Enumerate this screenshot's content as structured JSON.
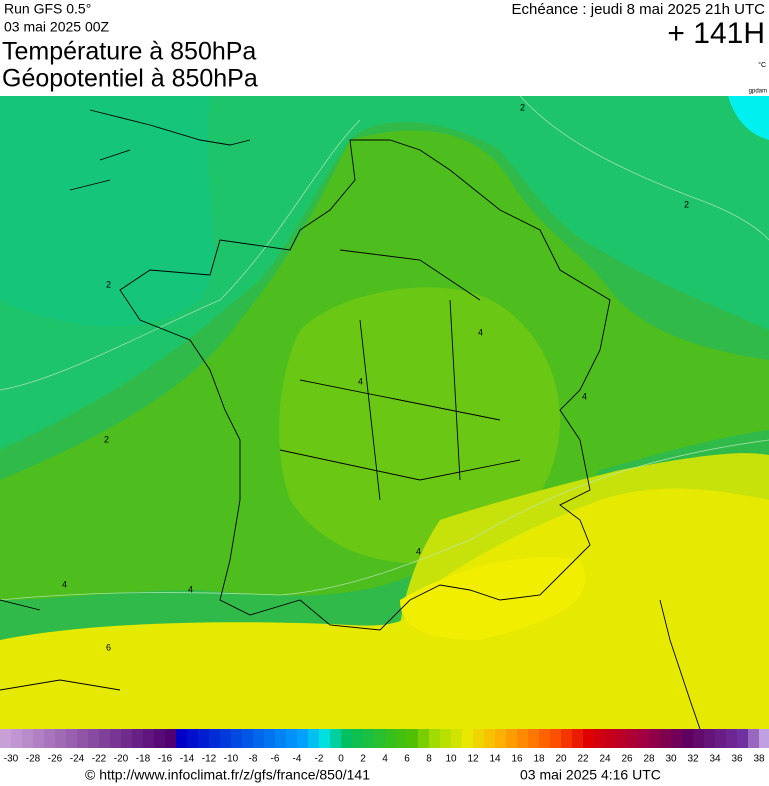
{
  "header": {
    "run": "Run GFS 0.5°",
    "date": "03 mai 2025 00Z",
    "title1": "Température à 850hPa",
    "title2": "Géopotentiel à 850hPa",
    "forecast": "Echéance : jeudi 8 mai 2025 21h UTC",
    "lead": "+ 141H",
    "unit": "°C",
    "unit2": "gpdam"
  },
  "contour_labels": [
    "2",
    "2",
    "2",
    "2",
    "4",
    "4",
    "4",
    "4",
    "4",
    "4",
    "6"
  ],
  "colorbar": {
    "labels": [
      "-30",
      "-28",
      "-26",
      "-24",
      "-22",
      "-20",
      "-18",
      "-16",
      "-14",
      "-12",
      "-10",
      "-8",
      "-6",
      "-4",
      "-2",
      "0",
      "2",
      "4",
      "6",
      "8",
      "10",
      "12",
      "14",
      "16",
      "18",
      "20",
      "22",
      "24",
      "26",
      "28",
      "30",
      "32",
      "34",
      "36",
      "38"
    ]
  },
  "footer": {
    "url": "© http://www.infoclimat.fr/z/gfs/france/850/141",
    "generated": "03 mai 2025  4:16 UTC"
  }
}
